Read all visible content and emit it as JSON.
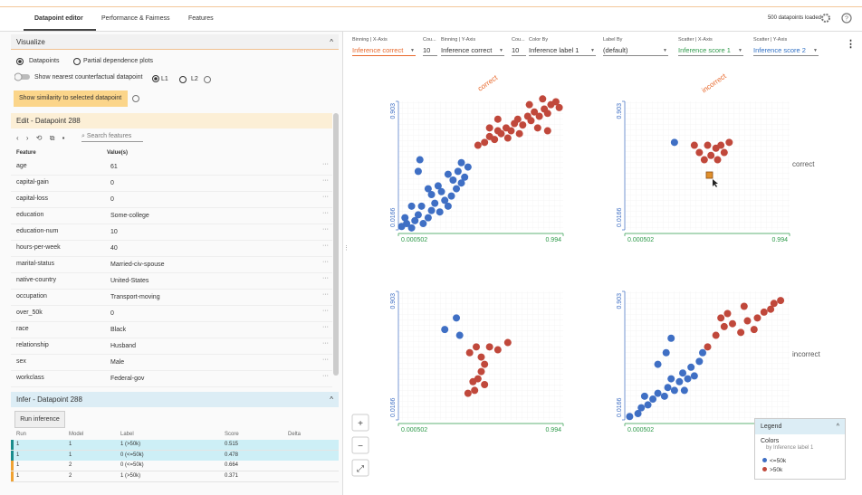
{
  "tabs": [
    "Datapoint editor",
    "Performance & Fairness",
    "Features"
  ],
  "status": "500 datapoints loaded",
  "visualize": {
    "title": "Visualize",
    "radios": [
      "Datapoints",
      "Partial dependence plots"
    ],
    "toggle": "Show nearest counterfactual datapoint",
    "norms": [
      "L1",
      "L2"
    ],
    "button": "Show similarity to selected datapoint"
  },
  "edit": {
    "title": "Edit - Datapoint 288",
    "search": "Search features",
    "columns": [
      "Feature",
      "Value(s)"
    ],
    "rows": [
      [
        "age",
        "61"
      ],
      [
        "capital-gain",
        "0"
      ],
      [
        "capital-loss",
        "0"
      ],
      [
        "education",
        "Some-college"
      ],
      [
        "education-num",
        "10"
      ],
      [
        "hours-per-week",
        "40"
      ],
      [
        "marital-status",
        "Married-civ-spouse"
      ],
      [
        "native-country",
        "United-States"
      ],
      [
        "occupation",
        "Transport-moving"
      ],
      [
        "over_50k",
        "0"
      ],
      [
        "race",
        "Black"
      ],
      [
        "relationship",
        "Husband"
      ],
      [
        "sex",
        "Male"
      ],
      [
        "workclass",
        "Federal-gov"
      ]
    ]
  },
  "infer": {
    "title": "Infer - Datapoint 288",
    "button": "Run inference",
    "columns": [
      "Run",
      "Model",
      "Label",
      "Score",
      "Delta"
    ],
    "rows": [
      [
        "1",
        "1",
        "1 (>50k)",
        "0.515"
      ],
      [
        "1",
        "1",
        "0 (<=50k)",
        "0.478"
      ],
      [
        "1",
        "2",
        "0 (<=50k)",
        "0.664"
      ],
      [
        "1",
        "2",
        "1 (>50k)",
        "0.371"
      ]
    ]
  },
  "controls": [
    {
      "label": "Binning | X-Axis",
      "value": "Inference correct"
    },
    {
      "label": "Cou...",
      "value": "10"
    },
    {
      "label": "Binning | Y-Axis",
      "value": "Inference correct"
    },
    {
      "label": "Cou...",
      "value": "10"
    },
    {
      "label": "Color By",
      "value": "Inference label 1"
    },
    {
      "label": "Label By",
      "value": "(default)"
    },
    {
      "label": "Scatter | X-Axis",
      "value": "Inference score 1"
    },
    {
      "label": "Scatter | Y-Axis",
      "value": "Inference score 2"
    }
  ],
  "facets": {
    "columns": [
      "correct",
      "incorrect"
    ],
    "rows": [
      "correct",
      "incorrect"
    ],
    "xlim": [
      0.000502,
      0.994
    ],
    "ylim": [
      0.0166,
      0.903
    ],
    "plots": [
      {
        "blue": [
          [
            0.02,
            0.04
          ],
          [
            0.05,
            0.06
          ],
          [
            0.08,
            0.03
          ],
          [
            0.1,
            0.08
          ],
          [
            0.04,
            0.1
          ],
          [
            0.12,
            0.12
          ],
          [
            0.15,
            0.06
          ],
          [
            0.18,
            0.1
          ],
          [
            0.2,
            0.15
          ],
          [
            0.14,
            0.18
          ],
          [
            0.22,
            0.2
          ],
          [
            0.25,
            0.14
          ],
          [
            0.28,
            0.22
          ],
          [
            0.3,
            0.18
          ],
          [
            0.26,
            0.28
          ],
          [
            0.32,
            0.25
          ],
          [
            0.35,
            0.3
          ],
          [
            0.33,
            0.36
          ],
          [
            0.38,
            0.34
          ],
          [
            0.36,
            0.42
          ],
          [
            0.4,
            0.38
          ],
          [
            0.3,
            0.4
          ],
          [
            0.24,
            0.32
          ],
          [
            0.2,
            0.26
          ],
          [
            0.12,
            0.42
          ],
          [
            0.13,
            0.5
          ],
          [
            0.18,
            0.3
          ],
          [
            0.08,
            0.18
          ],
          [
            0.42,
            0.45
          ],
          [
            0.38,
            0.48
          ]
        ],
        "red": [
          [
            0.48,
            0.6
          ],
          [
            0.52,
            0.62
          ],
          [
            0.55,
            0.66
          ],
          [
            0.58,
            0.64
          ],
          [
            0.6,
            0.7
          ],
          [
            0.62,
            0.68
          ],
          [
            0.65,
            0.72
          ],
          [
            0.68,
            0.7
          ],
          [
            0.7,
            0.75
          ],
          [
            0.72,
            0.78
          ],
          [
            0.75,
            0.74
          ],
          [
            0.78,
            0.8
          ],
          [
            0.8,
            0.77
          ],
          [
            0.82,
            0.83
          ],
          [
            0.85,
            0.8
          ],
          [
            0.88,
            0.85
          ],
          [
            0.9,
            0.82
          ],
          [
            0.92,
            0.88
          ],
          [
            0.95,
            0.9
          ],
          [
            0.97,
            0.86
          ],
          [
            0.84,
            0.72
          ],
          [
            0.9,
            0.7
          ],
          [
            0.6,
            0.78
          ],
          [
            0.55,
            0.72
          ],
          [
            0.87,
            0.92
          ],
          [
            0.79,
            0.88
          ],
          [
            0.66,
            0.65
          ],
          [
            0.73,
            0.68
          ]
        ]
      },
      {
        "blue": [
          [
            0.3,
            0.62
          ]
        ],
        "red": [
          [
            0.45,
            0.55
          ],
          [
            0.48,
            0.5
          ],
          [
            0.52,
            0.53
          ],
          [
            0.55,
            0.58
          ],
          [
            0.58,
            0.6
          ],
          [
            0.6,
            0.55
          ],
          [
            0.63,
            0.62
          ],
          [
            0.5,
            0.6
          ],
          [
            0.42,
            0.6
          ],
          [
            0.56,
            0.5
          ]
        ]
      },
      {
        "blue": [
          [
            0.28,
            0.64
          ],
          [
            0.35,
            0.72
          ],
          [
            0.37,
            0.6
          ]
        ],
        "red": [
          [
            0.43,
            0.48
          ],
          [
            0.47,
            0.52
          ],
          [
            0.52,
            0.4
          ],
          [
            0.5,
            0.35
          ],
          [
            0.55,
            0.52
          ],
          [
            0.6,
            0.5
          ],
          [
            0.66,
            0.55
          ],
          [
            0.48,
            0.3
          ],
          [
            0.45,
            0.28
          ],
          [
            0.52,
            0.26
          ],
          [
            0.46,
            0.22
          ],
          [
            0.42,
            0.2
          ],
          [
            0.5,
            0.45
          ]
        ]
      },
      {
        "blue": [
          [
            0.03,
            0.04
          ],
          [
            0.08,
            0.06
          ],
          [
            0.1,
            0.1
          ],
          [
            0.14,
            0.12
          ],
          [
            0.12,
            0.18
          ],
          [
            0.17,
            0.16
          ],
          [
            0.2,
            0.2
          ],
          [
            0.24,
            0.18
          ],
          [
            0.26,
            0.24
          ],
          [
            0.28,
            0.3
          ],
          [
            0.3,
            0.22
          ],
          [
            0.33,
            0.28
          ],
          [
            0.35,
            0.34
          ],
          [
            0.38,
            0.3
          ],
          [
            0.4,
            0.38
          ],
          [
            0.42,
            0.32
          ],
          [
            0.2,
            0.4
          ],
          [
            0.25,
            0.48
          ],
          [
            0.28,
            0.58
          ],
          [
            0.45,
            0.42
          ],
          [
            0.47,
            0.48
          ],
          [
            0.36,
            0.22
          ]
        ],
        "red": [
          [
            0.5,
            0.52
          ],
          [
            0.55,
            0.6
          ],
          [
            0.6,
            0.66
          ],
          [
            0.58,
            0.72
          ],
          [
            0.62,
            0.75
          ],
          [
            0.65,
            0.68
          ],
          [
            0.7,
            0.62
          ],
          [
            0.74,
            0.7
          ],
          [
            0.78,
            0.64
          ],
          [
            0.8,
            0.72
          ],
          [
            0.84,
            0.76
          ],
          [
            0.88,
            0.78
          ],
          [
            0.9,
            0.82
          ],
          [
            0.94,
            0.84
          ],
          [
            0.72,
            0.8
          ]
        ]
      }
    ]
  },
  "legend": {
    "title": "Legend",
    "heading": "Colors",
    "subtitle": "by Inference label 1",
    "items": [
      {
        "label": "<=50k",
        "color": "#3f6fc4"
      },
      {
        "label": ">50k",
        "color": "#c0483b"
      }
    ]
  }
}
